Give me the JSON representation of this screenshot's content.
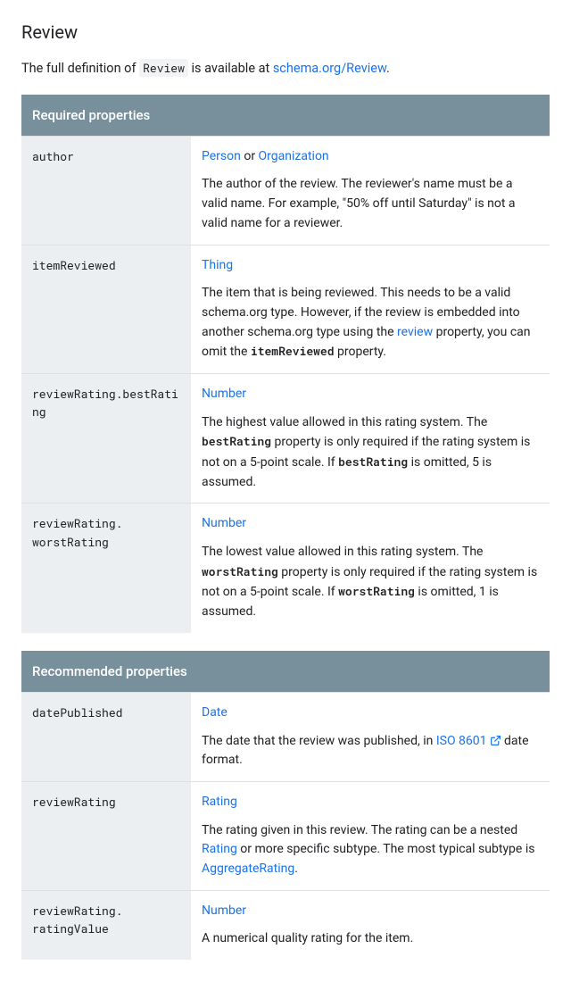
{
  "title": "Review",
  "intro": {
    "prefix": "The full definition of ",
    "code": "Review",
    "mid": " is available at ",
    "linkText": "schema.org/Review",
    "suffix": "."
  },
  "colors": {
    "headerBg": "#78909c",
    "link": "#1a73e8",
    "propBg": "#eceff1",
    "border": "#e0e0e0"
  },
  "sections": [
    {
      "header": "Required properties",
      "rows": [
        {
          "name": "author",
          "types": [
            {
              "text": "Person",
              "link": true
            },
            {
              "text": " or ",
              "link": false
            },
            {
              "text": "Organization",
              "link": true
            }
          ],
          "desc": [
            {
              "t": "The author of the review. The reviewer's name must be a valid name. For example, \"50% off until Saturday\" is not a valid name for a reviewer."
            }
          ]
        },
        {
          "name": "itemReviewed",
          "types": [
            {
              "text": "Thing",
              "link": true
            }
          ],
          "desc": [
            {
              "t": "The item that is being reviewed. This needs to be a valid schema.org type. However, if the review is embedded into another schema.org type using the "
            },
            {
              "t": "review",
              "link": true
            },
            {
              "t": " property, you can omit the "
            },
            {
              "t": "itemReviewed",
              "code": true
            },
            {
              "t": " property."
            }
          ]
        },
        {
          "name": "reviewRating.bestRating",
          "types": [
            {
              "text": "Number",
              "link": true
            }
          ],
          "desc": [
            {
              "t": "The highest value allowed in this rating system. The "
            },
            {
              "t": "bestRating",
              "code": true
            },
            {
              "t": " property is only required if the rating system is not on a 5-point scale. If "
            },
            {
              "t": "bestRating",
              "code": true
            },
            {
              "t": " is omitted, 5 is assumed."
            }
          ]
        },
        {
          "name": "reviewRating. worstRating",
          "types": [
            {
              "text": "Number",
              "link": true
            }
          ],
          "desc": [
            {
              "t": "The lowest value allowed in this rating system. The "
            },
            {
              "t": "worstRating",
              "code": true
            },
            {
              "t": " property is only required if the rating system is not on a 5-point scale. If "
            },
            {
              "t": "worstRating",
              "code": true
            },
            {
              "t": " is omitted, 1 is assumed."
            }
          ]
        }
      ]
    },
    {
      "header": "Recommended properties",
      "rows": [
        {
          "name": "datePublished",
          "types": [
            {
              "text": "Date",
              "link": true
            }
          ],
          "desc": [
            {
              "t": "The date that the review was published, in "
            },
            {
              "t": "ISO 8601",
              "link": true,
              "ext": true
            },
            {
              "t": " date format."
            }
          ]
        },
        {
          "name": "reviewRating",
          "types": [
            {
              "text": "Rating",
              "link": true
            }
          ],
          "desc": [
            {
              "t": "The rating given in this review. The rating can be a nested "
            },
            {
              "t": "Rating",
              "link": true
            },
            {
              "t": " or more specific subtype. The most typical subtype is "
            },
            {
              "t": "AggregateRating",
              "link": true
            },
            {
              "t": "."
            }
          ]
        },
        {
          "name": "reviewRating. ratingValue",
          "types": [
            {
              "text": "Number",
              "link": true
            }
          ],
          "desc": [
            {
              "t": "A numerical quality rating for the item."
            }
          ]
        }
      ]
    }
  ]
}
